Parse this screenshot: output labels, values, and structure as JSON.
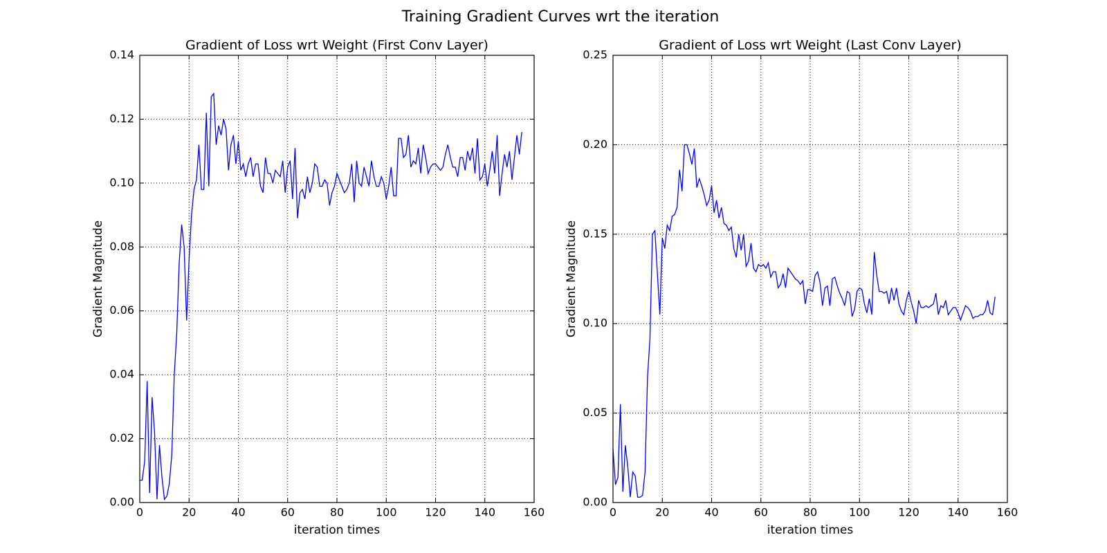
{
  "title": "Training Gradient Curves wrt the iteration",
  "chart_data": [
    {
      "type": "line",
      "title": "Gradient of Loss wrt Weight (First Conv Layer)",
      "xlabel": "iteration times",
      "ylabel": "Gradient Magnitude",
      "color": "#0000ff",
      "grid": true,
      "xlim": [
        0,
        160
      ],
      "ylim": [
        0,
        0.14
      ],
      "xticks": [
        0,
        20,
        40,
        60,
        80,
        100,
        120,
        140,
        160
      ],
      "yticks": [
        {
          "value": 0,
          "label": "0.00"
        },
        0.02,
        0.04,
        0.06,
        0.08,
        {
          "value": 0.1,
          "label": "0.10"
        },
        0.12,
        0.14
      ],
      "x": [
        0,
        1,
        2,
        3,
        4,
        5,
        6,
        7,
        8,
        9,
        10,
        11,
        12,
        13,
        14,
        15,
        16,
        17,
        18,
        19,
        20,
        21,
        22,
        23,
        24,
        25,
        26,
        27,
        28,
        29,
        30,
        31,
        32,
        33,
        34,
        35,
        36,
        37,
        38,
        39,
        40,
        41,
        42,
        43,
        44,
        45,
        46,
        47,
        48,
        49,
        50,
        51,
        52,
        53,
        54,
        55,
        56,
        57,
        58,
        59,
        60,
        61,
        62,
        63,
        64,
        65,
        66,
        67,
        68,
        69,
        70,
        71,
        72,
        73,
        74,
        75,
        76,
        77,
        78,
        79,
        80,
        81,
        82,
        83,
        84,
        85,
        86,
        87,
        88,
        89,
        90,
        91,
        92,
        93,
        94,
        95,
        96,
        97,
        98,
        99,
        100,
        101,
        102,
        103,
        104,
        105,
        106,
        107,
        108,
        109,
        110,
        111,
        112,
        113,
        114,
        115,
        116,
        117,
        118,
        119,
        120,
        121,
        122,
        123,
        124,
        125,
        126,
        127,
        128,
        129,
        130,
        131,
        132,
        133,
        134,
        135,
        136,
        137,
        138,
        139,
        140,
        141,
        142,
        143,
        144,
        145,
        146,
        147,
        148,
        149,
        150,
        151,
        152,
        153,
        154,
        155
      ],
      "values": [
        0.007,
        0.007,
        0.013,
        0.038,
        0.003,
        0.033,
        0.022,
        0.001,
        0.018,
        0.008,
        0.001,
        0.002,
        0.006,
        0.015,
        0.04,
        0.053,
        0.075,
        0.087,
        0.08,
        0.057,
        0.076,
        0.09,
        0.098,
        0.101,
        0.112,
        0.098,
        0.098,
        0.122,
        0.099,
        0.127,
        0.128,
        0.112,
        0.118,
        0.115,
        0.12,
        0.117,
        0.104,
        0.112,
        0.115,
        0.106,
        0.113,
        0.104,
        0.106,
        0.102,
        0.106,
        0.108,
        0.102,
        0.106,
        0.106,
        0.099,
        0.097,
        0.108,
        0.103,
        0.103,
        0.1,
        0.104,
        0.103,
        0.102,
        0.107,
        0.097,
        0.105,
        0.107,
        0.095,
        0.111,
        0.089,
        0.097,
        0.098,
        0.095,
        0.102,
        0.097,
        0.1,
        0.106,
        0.105,
        0.099,
        0.099,
        0.101,
        0.1,
        0.093,
        0.097,
        0.099,
        0.103,
        0.101,
        0.099,
        0.097,
        0.098,
        0.1,
        0.106,
        0.094,
        0.107,
        0.1,
        0.099,
        0.105,
        0.102,
        0.099,
        0.107,
        0.102,
        0.099,
        0.099,
        0.102,
        0.1,
        0.095,
        0.099,
        0.105,
        0.096,
        0.096,
        0.114,
        0.114,
        0.108,
        0.109,
        0.115,
        0.105,
        0.107,
        0.106,
        0.111,
        0.103,
        0.112,
        0.108,
        0.103,
        0.105,
        0.106,
        0.106,
        0.105,
        0.104,
        0.105,
        0.109,
        0.112,
        0.108,
        0.105,
        0.105,
        0.102,
        0.108,
        0.108,
        0.104,
        0.11,
        0.107,
        0.111,
        0.103,
        0.114,
        0.101,
        0.102,
        0.106,
        0.099,
        0.104,
        0.11,
        0.103,
        0.115,
        0.096,
        0.103,
        0.109,
        0.105,
        0.11,
        0.101,
        0.108,
        0.115,
        0.109,
        0.116
      ]
    },
    {
      "type": "line",
      "title": "Gradient of Loss wrt Weight (Last Conv Layer)",
      "xlabel": "iteration times",
      "ylabel": "Gradient Magnitude",
      "color": "#0000ff",
      "grid": true,
      "xlim": [
        0,
        160
      ],
      "ylim": [
        0,
        0.25
      ],
      "xticks": [
        0,
        20,
        40,
        60,
        80,
        100,
        120,
        140,
        160
      ],
      "yticks": [
        {
          "value": 0,
          "label": "0.00"
        },
        0.05,
        {
          "value": 0.1,
          "label": "0.10"
        },
        0.15,
        {
          "value": 0.2,
          "label": "0.20"
        },
        0.25
      ],
      "x": [
        0,
        1,
        2,
        3,
        4,
        5,
        6,
        7,
        8,
        9,
        10,
        11,
        12,
        13,
        14,
        15,
        16,
        17,
        18,
        19,
        20,
        21,
        22,
        23,
        24,
        25,
        26,
        27,
        28,
        29,
        30,
        31,
        32,
        33,
        34,
        35,
        36,
        37,
        38,
        39,
        40,
        41,
        42,
        43,
        44,
        45,
        46,
        47,
        48,
        49,
        50,
        51,
        52,
        53,
        54,
        55,
        56,
        57,
        58,
        59,
        60,
        61,
        62,
        63,
        64,
        65,
        66,
        67,
        68,
        69,
        70,
        71,
        72,
        73,
        74,
        75,
        76,
        77,
        78,
        79,
        80,
        81,
        82,
        83,
        84,
        85,
        86,
        87,
        88,
        89,
        90,
        91,
        92,
        93,
        94,
        95,
        96,
        97,
        98,
        99,
        100,
        101,
        102,
        103,
        104,
        105,
        106,
        107,
        108,
        109,
        110,
        111,
        112,
        113,
        114,
        115,
        116,
        117,
        118,
        119,
        120,
        121,
        122,
        123,
        124,
        125,
        126,
        127,
        128,
        129,
        130,
        131,
        132,
        133,
        134,
        135,
        136,
        137,
        138,
        139,
        140,
        141,
        142,
        143,
        144,
        145,
        146,
        147,
        148,
        149,
        150,
        151,
        152,
        153,
        154,
        155
      ],
      "values": [
        0.03,
        0.01,
        0.014,
        0.055,
        0.006,
        0.032,
        0.02,
        0.003,
        0.017,
        0.015,
        0.003,
        0.003,
        0.004,
        0.017,
        0.07,
        0.092,
        0.15,
        0.152,
        0.128,
        0.105,
        0.148,
        0.142,
        0.155,
        0.152,
        0.16,
        0.161,
        0.165,
        0.186,
        0.174,
        0.2,
        0.2,
        0.195,
        0.189,
        0.198,
        0.176,
        0.181,
        0.177,
        0.172,
        0.166,
        0.169,
        0.177,
        0.162,
        0.169,
        0.159,
        0.165,
        0.156,
        0.155,
        0.152,
        0.154,
        0.142,
        0.137,
        0.15,
        0.141,
        0.15,
        0.132,
        0.135,
        0.145,
        0.131,
        0.129,
        0.133,
        0.132,
        0.133,
        0.131,
        0.134,
        0.126,
        0.129,
        0.129,
        0.12,
        0.122,
        0.128,
        0.12,
        0.131,
        0.129,
        0.127,
        0.125,
        0.124,
        0.122,
        0.124,
        0.111,
        0.119,
        0.119,
        0.118,
        0.127,
        0.129,
        0.123,
        0.11,
        0.12,
        0.121,
        0.11,
        0.125,
        0.126,
        0.121,
        0.117,
        0.114,
        0.11,
        0.118,
        0.117,
        0.104,
        0.108,
        0.118,
        0.12,
        0.119,
        0.111,
        0.106,
        0.114,
        0.105,
        0.14,
        0.127,
        0.118,
        0.118,
        0.117,
        0.118,
        0.111,
        0.12,
        0.113,
        0.12,
        0.111,
        0.107,
        0.105,
        0.113,
        0.118,
        0.112,
        0.107,
        0.1,
        0.113,
        0.109,
        0.109,
        0.11,
        0.109,
        0.11,
        0.111,
        0.117,
        0.105,
        0.11,
        0.109,
        0.113,
        0.105,
        0.107,
        0.109,
        0.109,
        0.106,
        0.102,
        0.106,
        0.11,
        0.109,
        0.107,
        0.103,
        0.104,
        0.104,
        0.105,
        0.105,
        0.107,
        0.113,
        0.106,
        0.105,
        0.115
      ]
    }
  ]
}
